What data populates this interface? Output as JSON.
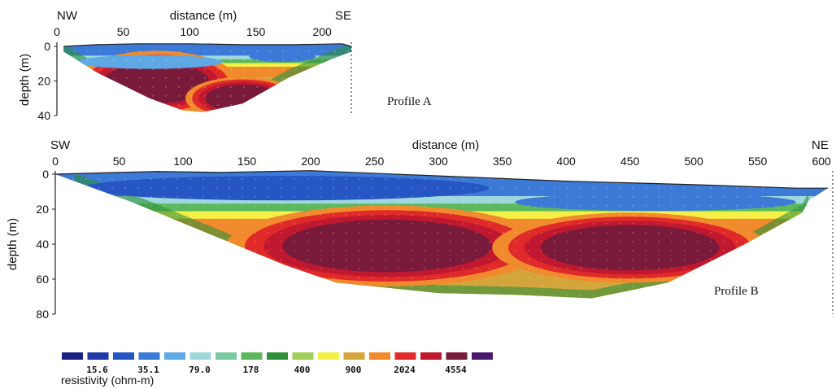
{
  "chart_data": [
    {
      "type": "heatmap",
      "name": "Profile A",
      "left_label": "NW",
      "right_label": "SE",
      "xlabel": "distance (m)",
      "ylabel": "depth (m)",
      "x_ticks": [
        0,
        50,
        100,
        150,
        200
      ],
      "y_ticks": [
        0,
        20,
        40
      ],
      "xlim": [
        0,
        222
      ],
      "ylim": [
        0,
        40
      ],
      "label": "Profile A",
      "section": {
        "top_surface": [
          [
            5,
            0
          ],
          [
            30,
            -1
          ],
          [
            60,
            -1.5
          ],
          [
            100,
            -1.5
          ],
          [
            140,
            -1
          ],
          [
            180,
            -1
          ],
          [
            215,
            -1.5
          ],
          [
            222,
            0
          ]
        ],
        "bottom_boundary": [
          [
            5,
            3
          ],
          [
            30,
            15
          ],
          [
            70,
            30
          ],
          [
            95,
            37
          ],
          [
            110,
            38
          ],
          [
            140,
            33
          ],
          [
            175,
            18
          ],
          [
            205,
            8
          ],
          [
            222,
            3
          ]
        ]
      },
      "anomalies": [
        {
          "center": [
            75,
            21
          ],
          "half_width": 40,
          "half_depth": 12,
          "resistivity_class": 13
        },
        {
          "center": [
            140,
            30
          ],
          "half_width": 28,
          "half_depth": 8,
          "resistivity_class": 15
        },
        {
          "center": [
            70,
            9
          ],
          "half_width": 55,
          "half_depth": 4,
          "resistivity_class": 4
        },
        {
          "center": [
            170,
            6
          ],
          "half_width": 25,
          "half_depth": 3,
          "resistivity_class": 3
        }
      ]
    },
    {
      "type": "heatmap",
      "name": "Profile B",
      "left_label": "SW",
      "right_label": "NE",
      "xlabel": "distance (m)",
      "ylabel": "depth (m)",
      "x_ticks": [
        0,
        50,
        100,
        150,
        200,
        250,
        300,
        350,
        400,
        450,
        500,
        550,
        600
      ],
      "y_ticks": [
        0,
        20,
        40,
        60,
        80
      ],
      "xlim": [
        0,
        605
      ],
      "ylim": [
        0,
        80
      ],
      "label": "Profile B",
      "section": {
        "top_surface": [
          [
            0,
            0
          ],
          [
            50,
            -1
          ],
          [
            80,
            -1.5
          ],
          [
            130,
            -1
          ],
          [
            200,
            -2
          ],
          [
            300,
            1
          ],
          [
            400,
            4
          ],
          [
            500,
            6
          ],
          [
            580,
            8
          ],
          [
            605,
            8
          ]
        ],
        "bottom_boundary": [
          [
            15,
            4
          ],
          [
            60,
            16
          ],
          [
            120,
            34
          ],
          [
            180,
            52
          ],
          [
            220,
            62
          ],
          [
            300,
            68
          ],
          [
            360,
            69
          ],
          [
            420,
            71
          ],
          [
            480,
            62
          ],
          [
            540,
            40
          ],
          [
            585,
            22
          ],
          [
            590,
            15
          ]
        ]
      },
      "anomalies": [
        {
          "center": [
            260,
            41
          ],
          "half_width": 82,
          "half_depth": 15,
          "resistivity_class": 15
        },
        {
          "center": [
            450,
            42
          ],
          "half_width": 70,
          "half_depth": 13,
          "resistivity_class": 15
        },
        {
          "center": [
            180,
            8
          ],
          "half_width": 160,
          "half_depth": 7,
          "resistivity_class": 2
        },
        {
          "center": [
            470,
            16
          ],
          "half_width": 110,
          "half_depth": 5,
          "resistivity_class": 3
        }
      ]
    }
  ],
  "colorbar": {
    "label": "resistivity (ohm-m)",
    "colors": [
      "#1a2180",
      "#1f3aa6",
      "#2656c4",
      "#3b7ad6",
      "#5fa8e6",
      "#9fd8dc",
      "#78c8a0",
      "#5cb85c",
      "#2f8f3a",
      "#9fd05a",
      "#f4f046",
      "#d4a53a",
      "#f08a2c",
      "#e02a2a",
      "#c0182e",
      "#7a1a3a",
      "#4a1a6e"
    ],
    "tick_labels": [
      "15.6",
      "35.1",
      "79.0",
      "178",
      "400",
      "900",
      "2024",
      "4554"
    ]
  }
}
